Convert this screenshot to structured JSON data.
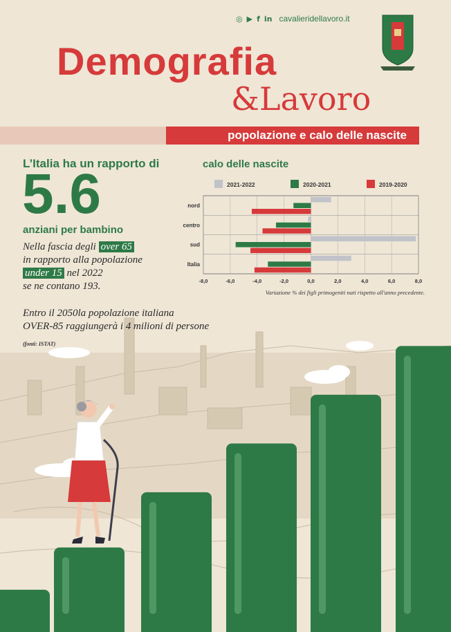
{
  "header": {
    "social_icons": [
      "instagram-icon",
      "youtube-icon",
      "facebook-icon",
      "linkedin-icon"
    ],
    "website": "cavalieridellavoro.it"
  },
  "title": {
    "line1": "Demografia",
    "line2": "&Lavoro"
  },
  "banner": "popolazione e calo delle nascite",
  "stat": {
    "lead": "L’Italia ha un rapporto di",
    "value": "5.6",
    "unit": "anziani per bambino",
    "text1": "Nella fascia degli",
    "hl1": "over 65",
    "text2": "in rapporto alla popolazione",
    "hl2": "under 15",
    "text3": "nel 2022",
    "text4": "se ne contano 193."
  },
  "projection": {
    "line1": "Entro il 2050la popolazione italiana",
    "line2": "OVER-85 raggiungerà i 4 milioni di persone"
  },
  "source": "(fonti: ISTAT)",
  "chart_data": {
    "type": "bar",
    "orientation": "horizontal",
    "title": "calo delle nascite",
    "categories": [
      "nord",
      "centro",
      "sud",
      "Italia"
    ],
    "series": [
      {
        "name": "2021-2022",
        "color": "#c1c3c9",
        "values": [
          1.5,
          -0.2,
          7.8,
          3.0
        ]
      },
      {
        "name": "2020-2021",
        "color": "#2e7a46",
        "values": [
          -1.3,
          -2.6,
          -5.6,
          -3.2
        ]
      },
      {
        "name": "2019-2020",
        "color": "#d63a3a",
        "values": [
          -4.4,
          -3.6,
          -4.5,
          -4.2
        ]
      }
    ],
    "xlim": [
      -8,
      8
    ],
    "xticks": [
      "-8,0",
      "-6,0",
      "-4,0",
      "-2,0",
      "0,0",
      "2,0",
      "4,0",
      "6,0",
      "8,0"
    ],
    "note": "Variazione % dei figli primogeniti nati rispetto all'anno precedente.",
    "legend_position": "top",
    "grid": true
  },
  "decorative_bars": {
    "color": "#2e7a46",
    "heights_relative": [
      0.13,
      0.26,
      0.43,
      0.58,
      0.73,
      0.88,
      1.0
    ]
  }
}
